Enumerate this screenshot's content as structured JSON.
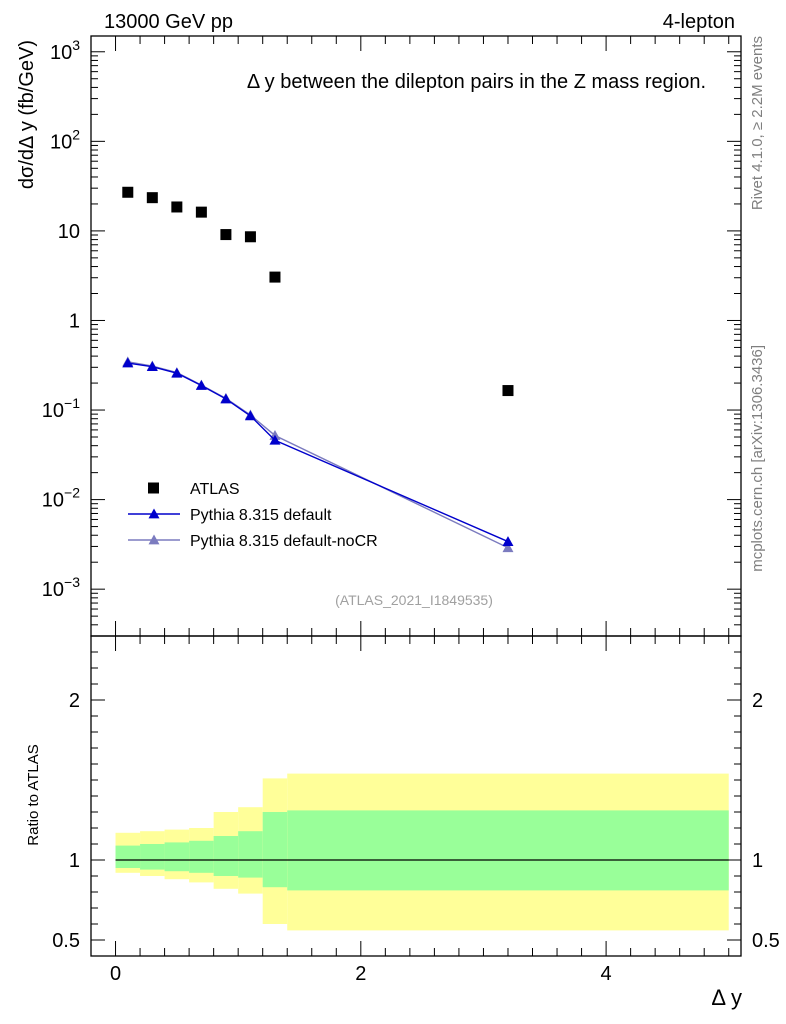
{
  "header": {
    "left": "13000 GeV pp",
    "right": "4-lepton"
  },
  "side": {
    "rivet": "Rivet 4.1.0, ≥ 2.2M events",
    "mcplots": "mcplots.cern.ch [arXiv:1306.3436]"
  },
  "chart_data": {
    "type": "scatter",
    "title": "Δ y between the dilepton pairs in the Z mass region.",
    "analysis_id": "(ATLAS_2021_I1849535)",
    "xlabel": "Δ y",
    "ylabel": "dσ/dΔ y (fb/GeV)",
    "ratio_ylabel": "Ratio to ATLAS",
    "xlim": [
      -0.2,
      5.1
    ],
    "ylim": [
      0.0003,
      1500
    ],
    "yscale": "log",
    "ratio_ylim": [
      0.4,
      2.4
    ],
    "x_ticks": [
      0,
      2,
      4
    ],
    "x_tick_labels": [
      "0",
      "2",
      "4"
    ],
    "y_ticks": [
      0.001,
      0.01,
      0.1,
      1,
      10,
      100,
      1000
    ],
    "y_tick_labels": [
      {
        "base": "10",
        "exp": "−3"
      },
      {
        "base": "10",
        "exp": "−2"
      },
      {
        "base": "10",
        "exp": "−1"
      },
      {
        "base": "1",
        "exp": ""
      },
      {
        "base": "10",
        "exp": ""
      },
      {
        "base": "10",
        "exp": "2"
      },
      {
        "base": "10",
        "exp": "3"
      }
    ],
    "ratio_ticks": [
      0.5,
      1,
      2
    ],
    "ratio_tick_labels": [
      "0.5",
      "1",
      "2"
    ],
    "legend_position": "bottom-left",
    "series": [
      {
        "name": "ATLAS",
        "marker": "square",
        "color": "#000000",
        "x": [
          0.1,
          0.3,
          0.5,
          0.7,
          0.9,
          1.1,
          1.3,
          3.2
        ],
        "y": [
          27,
          23.5,
          18.5,
          16.2,
          9.1,
          8.6,
          3.05,
          0.165
        ]
      },
      {
        "name": "Pythia 8.315 default",
        "marker": "triangle",
        "color": "#0000cc",
        "x": [
          0.1,
          0.3,
          0.5,
          0.7,
          0.9,
          1.1,
          1.3,
          3.2
        ],
        "y": [
          0.335,
          0.305,
          0.258,
          0.188,
          0.133,
          0.086,
          0.046,
          0.0034
        ]
      },
      {
        "name": "Pythia 8.315 default-noCR",
        "marker": "triangle",
        "color": "#7b7bbf",
        "x": [
          0.1,
          0.3,
          0.5,
          0.7,
          0.9,
          1.1,
          1.3,
          3.2
        ],
        "y": [
          0.345,
          0.31,
          0.262,
          0.19,
          0.135,
          0.088,
          0.052,
          0.0029
        ]
      }
    ],
    "ratio_bands": {
      "bin_edges": [
        0,
        0.2,
        0.4,
        0.6,
        0.8,
        1.0,
        1.2,
        1.4,
        5.0
      ],
      "stat_color": "#99ff99",
      "total_color": "#ffff99",
      "stat_up": [
        1.09,
        1.1,
        1.11,
        1.12,
        1.15,
        1.18,
        1.3,
        1.31
      ],
      "stat_down": [
        0.95,
        0.94,
        0.93,
        0.92,
        0.9,
        0.89,
        0.83,
        0.81
      ],
      "total_up": [
        1.17,
        1.18,
        1.19,
        1.2,
        1.3,
        1.33,
        1.51,
        1.54
      ],
      "total_down": [
        0.92,
        0.9,
        0.88,
        0.86,
        0.82,
        0.79,
        0.6,
        0.56
      ]
    }
  }
}
